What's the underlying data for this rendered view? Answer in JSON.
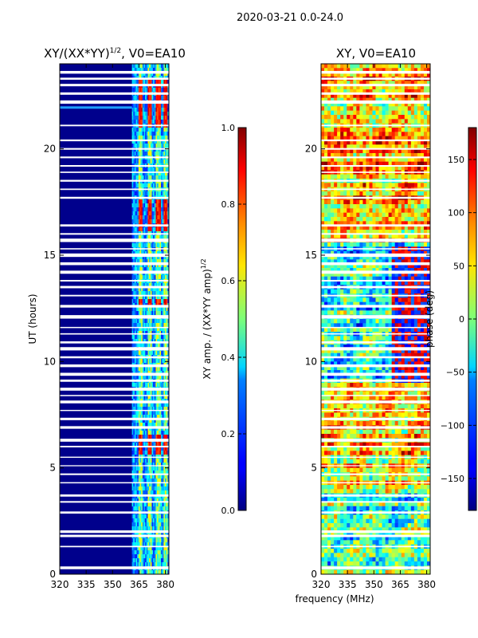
{
  "chart_data": [
    {
      "type": "heatmap",
      "suptitle": "2020-03-21 0.0-24.0",
      "title": "XY/(XX*YY)",
      "title_exponent": "1/2",
      "title_suffix": ", V0=EA10",
      "xlabel": "frequency (MHz)",
      "ylabel": "UT (hours)",
      "xlim": [
        320,
        382
      ],
      "ylim": [
        0,
        24
      ],
      "x_ticks": [
        320,
        335,
        350,
        365,
        380
      ],
      "y_ticks": [
        0,
        5,
        10,
        15,
        20
      ],
      "colorbar": {
        "label": "XY amp. / (XX*YY amp)",
        "label_exponent": "1/2",
        "range": [
          0.0,
          1.0
        ],
        "ticks": [
          "0.0",
          "0.2",
          "0.4",
          "0.6",
          "0.8",
          "1.0"
        ],
        "colormap": "jet"
      }
    },
    {
      "type": "heatmap",
      "title": "XY, V0=EA10",
      "xlabel": "frequency (MHz)",
      "xlim": [
        320,
        382
      ],
      "ylim": [
        0,
        24
      ],
      "x_ticks": [
        320,
        335,
        350,
        365,
        380
      ],
      "y_ticks": [
        0,
        5,
        10,
        15,
        20
      ],
      "colorbar": {
        "label": "phase (deg)",
        "range": [
          -180,
          180
        ],
        "ticks": [
          "−150",
          "−100",
          "−50",
          "0",
          "50",
          "100",
          "150"
        ],
        "tick_values": [
          -150,
          -100,
          -50,
          0,
          50,
          100,
          150
        ],
        "colormap": "jet"
      }
    }
  ]
}
